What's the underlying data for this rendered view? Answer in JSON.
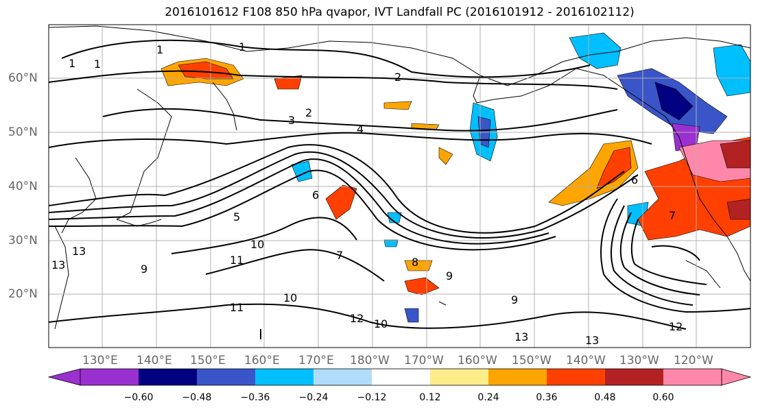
{
  "title": "2016101612 F108 850 hPa qvapor, IVT Landfall PC (2016101912 - 2016102112)",
  "map": {
    "lat_labels": [
      "60°N",
      "50°N",
      "40°N",
      "30°N",
      "20°N"
    ],
    "lon_labels": [
      "130°E",
      "140°E",
      "150°E",
      "160°E",
      "170°E",
      "180°W",
      "170°W",
      "160°W",
      "150°W",
      "140°W",
      "130°W",
      "120°W"
    ],
    "contour_labels": [
      "1",
      "1",
      "1",
      "1",
      "2",
      "2",
      "3",
      "4",
      "5",
      "6",
      "6",
      "7",
      "7",
      "8",
      "9",
      "9",
      "9",
      "10",
      "10",
      "10",
      "11",
      "11",
      "12",
      "12",
      "13",
      "13",
      "13",
      "13"
    ],
    "colors": {
      "land_lines": "#000000",
      "grid": "#b0b0b0"
    }
  },
  "colorbar": {
    "tick_labels": [
      "−0.60",
      "−0.48",
      "−0.36",
      "−0.24",
      "−0.12",
      "0.12",
      "0.24",
      "0.36",
      "0.48",
      "0.60"
    ],
    "colors": [
      "#9b30d0",
      "#000080",
      "#3a55c8",
      "#00bfff",
      "#afdcf8",
      "#ffffff",
      "#ffec8b",
      "#ffa500",
      "#ff4000",
      "#b22222",
      "#ff88aa",
      "#ff88aa"
    ]
  }
}
